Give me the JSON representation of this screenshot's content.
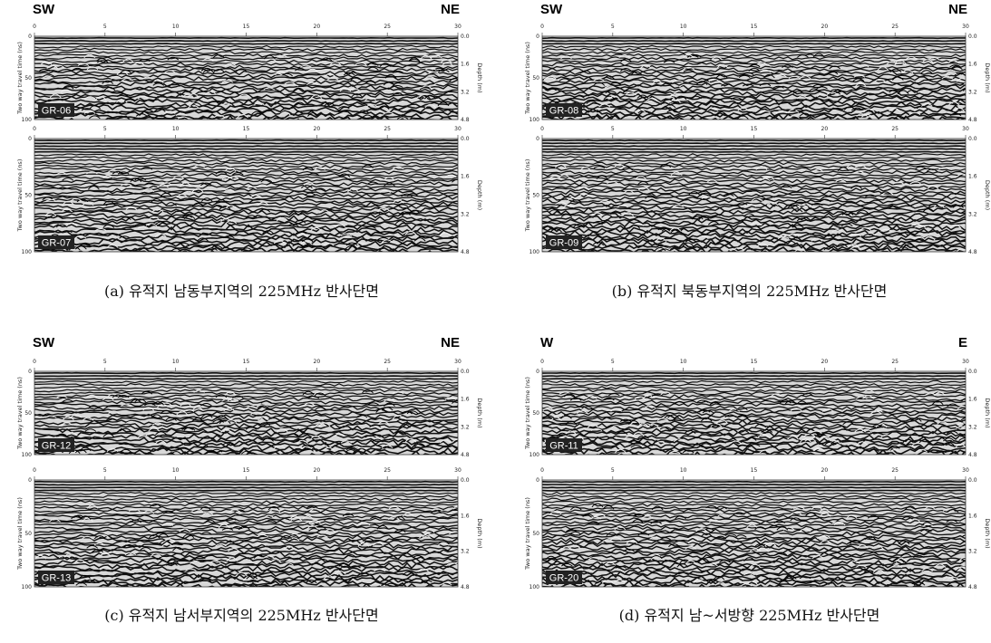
{
  "axes": {
    "distance_ticks": [
      "0",
      "5",
      "10",
      "15",
      "20",
      "25",
      "30"
    ],
    "time_ticks": [
      "0",
      "50",
      "100"
    ],
    "depth_ticks": [
      "0.0",
      "1.6",
      "3.2",
      "4.8"
    ],
    "time_label": "Two way travel time (ns)",
    "depth_label": "Depth (m)"
  },
  "panels": [
    {
      "caption": "(a) 유적지 남동부지역의 225MHz 반사단면",
      "left_direction": "SW",
      "right_direction": "NE",
      "profiles": [
        {
          "id": "GR-06"
        },
        {
          "id": "GR-07"
        }
      ]
    },
    {
      "caption": "(b) 유적지 북동부지역의 225MHz 반사단면",
      "left_direction": "SW",
      "right_direction": "NE",
      "profiles": [
        {
          "id": "GR-08"
        },
        {
          "id": "GR-09"
        }
      ]
    },
    {
      "caption": "(c) 유적지 남서부지역의 225MHz 반사단면",
      "left_direction": "SW",
      "right_direction": "NE",
      "profiles": [
        {
          "id": "GR-12"
        },
        {
          "id": "GR-13"
        }
      ]
    },
    {
      "caption": "(d) 유적지 남~서방향 225MHz 반사단면",
      "left_direction": "W",
      "right_direction": "E",
      "profiles": [
        {
          "id": "GR-11"
        },
        {
          "id": "GR-20"
        }
      ]
    }
  ]
}
